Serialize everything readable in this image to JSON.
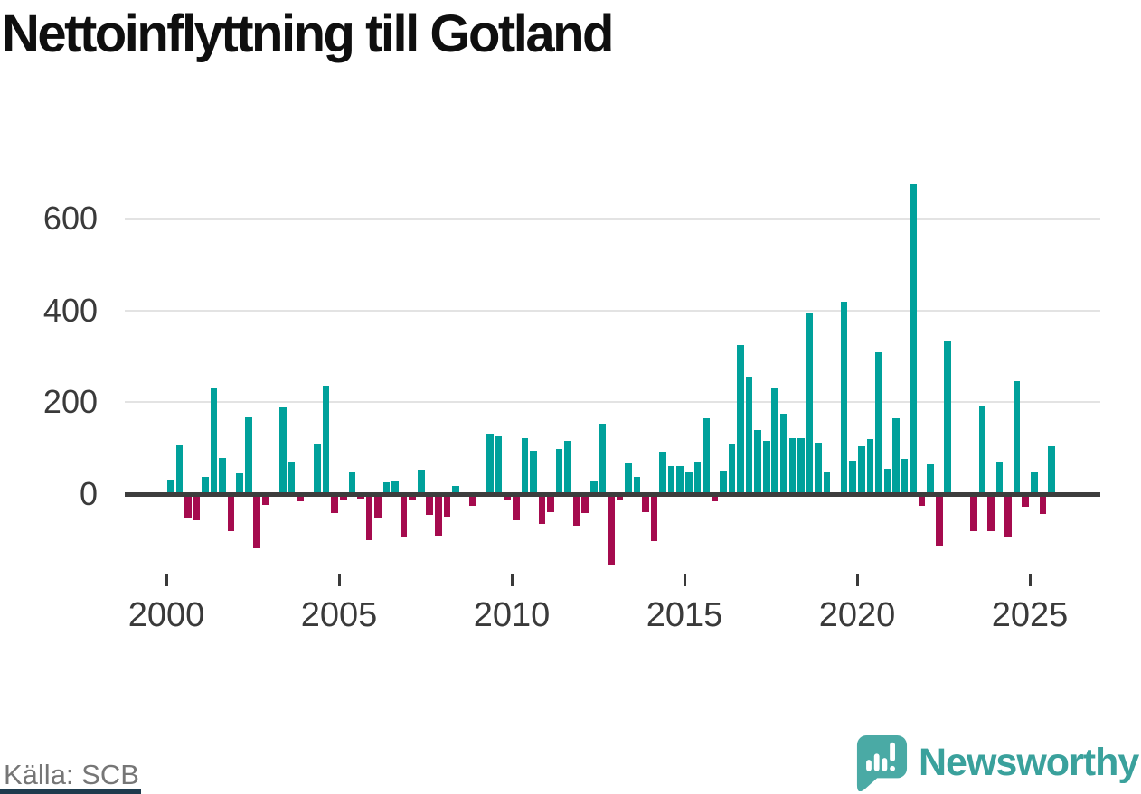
{
  "title": "Nettoinflyttning till Gotland",
  "footer": {
    "source": "Källa: SCB"
  },
  "branding": {
    "wordmark": "Newsworthy",
    "icon": "newsworthy-speech-bubble-bar-chart-icon",
    "wordmark_color": "#3aa19c",
    "icon_color": "#4aaaa5"
  },
  "chart_data": {
    "type": "bar",
    "title": "Nettoinflyttning till Gotland",
    "xlabel": "",
    "ylabel": "",
    "freq": "quarterly",
    "grid": "horizontal",
    "legend": "none",
    "ylim": [
      -170,
      700
    ],
    "y_ticks": [
      0,
      200,
      400,
      600
    ],
    "y_tick_labels": [
      "0",
      "200",
      "400",
      "600"
    ],
    "x_tick_years": [
      2000,
      2005,
      2010,
      2015,
      2020,
      2025
    ],
    "x_tick_labels": [
      "2000",
      "2005",
      "2010",
      "2015",
      "2020",
      "2025"
    ],
    "colors": {
      "positive": "#00a19b",
      "negative": "#a50b4e"
    },
    "quarters": [
      "2000Q1",
      "2000Q2",
      "2000Q3",
      "2000Q4",
      "2001Q1",
      "2001Q2",
      "2001Q3",
      "2001Q4",
      "2002Q1",
      "2002Q2",
      "2002Q3",
      "2002Q4",
      "2003Q1",
      "2003Q2",
      "2003Q3",
      "2003Q4",
      "2004Q1",
      "2004Q2",
      "2004Q3",
      "2004Q4",
      "2005Q1",
      "2005Q2",
      "2005Q3",
      "2005Q4",
      "2006Q1",
      "2006Q2",
      "2006Q3",
      "2006Q4",
      "2007Q1",
      "2007Q2",
      "2007Q3",
      "2007Q4",
      "2008Q1",
      "2008Q2",
      "2008Q3",
      "2008Q4",
      "2009Q1",
      "2009Q2",
      "2009Q3",
      "2009Q4",
      "2010Q1",
      "2010Q2",
      "2010Q3",
      "2010Q4",
      "2011Q1",
      "2011Q2",
      "2011Q3",
      "2011Q4",
      "2012Q1",
      "2012Q2",
      "2012Q3",
      "2012Q4",
      "2013Q1",
      "2013Q2",
      "2013Q3",
      "2013Q4",
      "2014Q1",
      "2014Q2",
      "2014Q3",
      "2014Q4",
      "2015Q1",
      "2015Q2",
      "2015Q3",
      "2015Q4",
      "2016Q1",
      "2016Q2",
      "2016Q3",
      "2016Q4",
      "2017Q1",
      "2017Q2",
      "2017Q3",
      "2017Q4",
      "2018Q1",
      "2018Q2",
      "2018Q3",
      "2018Q4",
      "2019Q1",
      "2019Q2",
      "2019Q3",
      "2019Q4",
      "2020Q1",
      "2020Q2",
      "2020Q3",
      "2020Q4",
      "2021Q1",
      "2021Q2",
      "2021Q3",
      "2021Q4",
      "2022Q1",
      "2022Q2",
      "2022Q3",
      "2022Q4",
      "2023Q1",
      "2023Q2",
      "2023Q3",
      "2023Q4",
      "2024Q1",
      "2024Q2",
      "2024Q3",
      "2024Q4",
      "2025Q1",
      "2025Q2",
      "2025Q3"
    ],
    "values": [
      31,
      107,
      -53,
      -58,
      37,
      233,
      79,
      -81,
      45,
      168,
      -118,
      -23,
      0,
      189,
      69,
      -16,
      0,
      109,
      236,
      -42,
      -14,
      47,
      -9,
      -101,
      -54,
      25,
      30,
      -94,
      -11,
      53,
      -45,
      -91,
      -49,
      17,
      0,
      -26,
      0,
      130,
      126,
      -12,
      -58,
      122,
      95,
      -64,
      -39,
      98,
      117,
      -69,
      -41,
      30,
      153,
      -155,
      -12,
      66,
      37,
      -39,
      -102,
      93,
      61,
      61,
      50,
      70,
      165,
      -16,
      51,
      110,
      325,
      255,
      140,
      117,
      230,
      175,
      122,
      122,
      395,
      112,
      48,
      0,
      420,
      72,
      104,
      121,
      310,
      56,
      166,
      76,
      675,
      -26,
      64,
      -115,
      335,
      0,
      0,
      -80,
      192,
      -81,
      68,
      -93,
      247,
      -27,
      49,
      -43,
      105
    ]
  }
}
